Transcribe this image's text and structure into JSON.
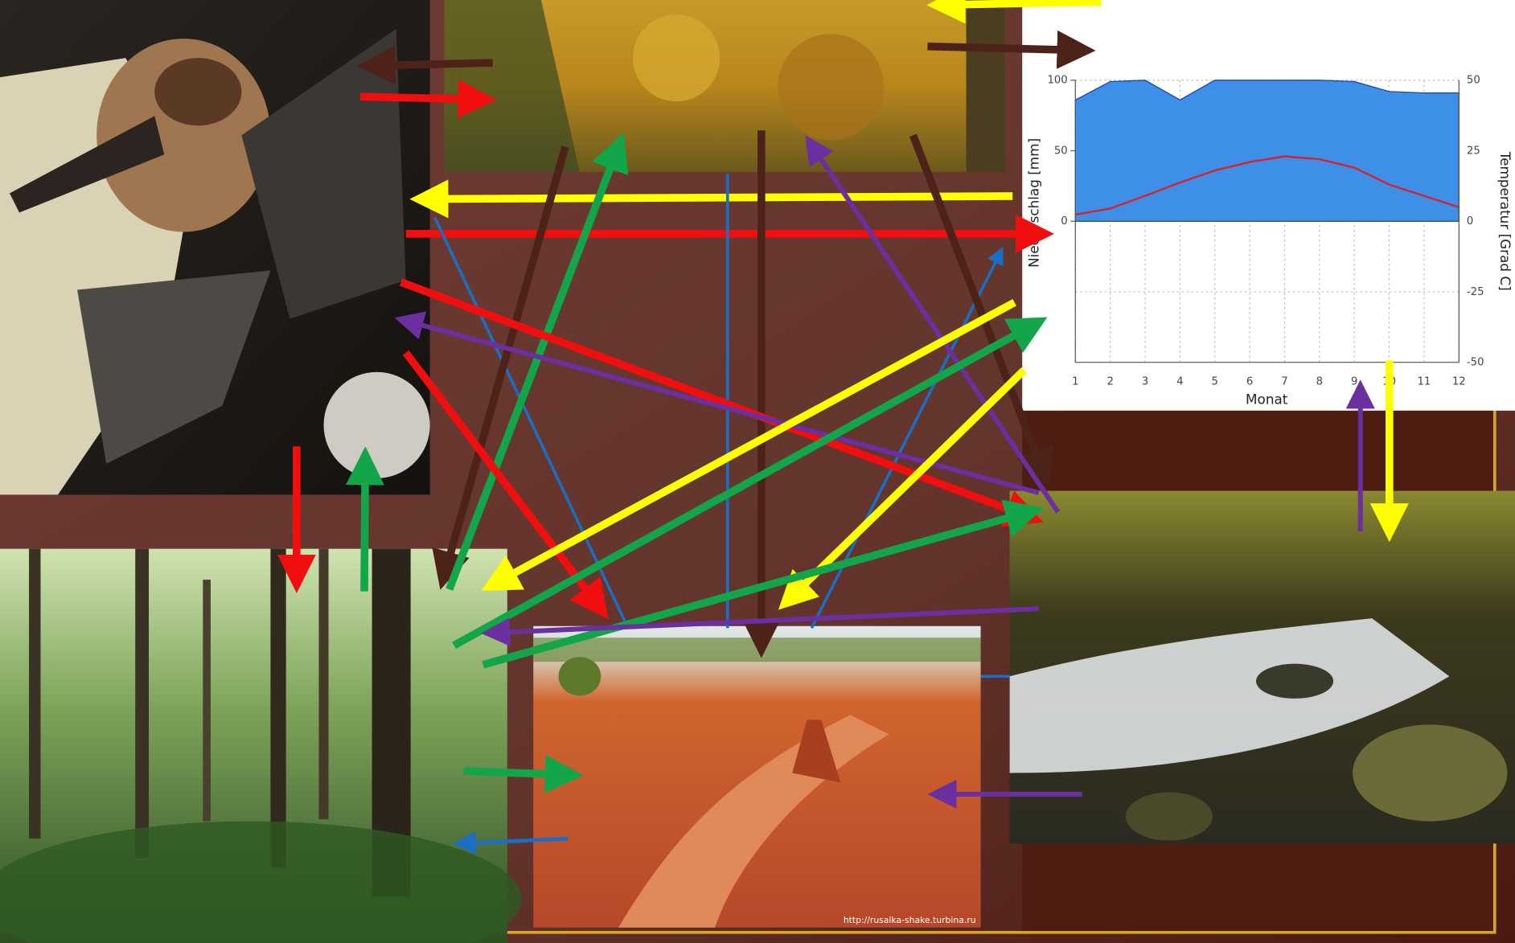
{
  "climate_chart": {
    "y_label": "Niederschlag [mm]",
    "y2_label": "Temperatur [Grad C]",
    "x_label": "Monat",
    "x": [
      1,
      2,
      3,
      4,
      5,
      6,
      7,
      8,
      9,
      10,
      11,
      12
    ],
    "xlim": [
      1,
      12
    ],
    "xticks": [
      1,
      2,
      3,
      4,
      5,
      6,
      7,
      8,
      9,
      10,
      11,
      12
    ],
    "ylim": [
      -100,
      100
    ],
    "yticks": [
      0,
      50,
      100
    ],
    "y2lim": [
      -50,
      50
    ],
    "y2ticks": [
      -50,
      -25,
      0,
      25,
      50
    ],
    "precipitation": {
      "color": "#3d8fe8",
      "values": [
        86,
        99,
        100,
        86,
        100,
        100,
        100,
        100,
        99,
        92,
        91,
        91
      ]
    },
    "temperature": {
      "color": "#d8232a",
      "axis": "y2",
      "values": [
        2.4,
        4.5,
        9,
        13.7,
        18,
        21,
        23,
        22,
        19,
        13,
        9,
        5
      ]
    }
  },
  "photo_credit": "http://rusalka-shake.turbina.ru"
}
